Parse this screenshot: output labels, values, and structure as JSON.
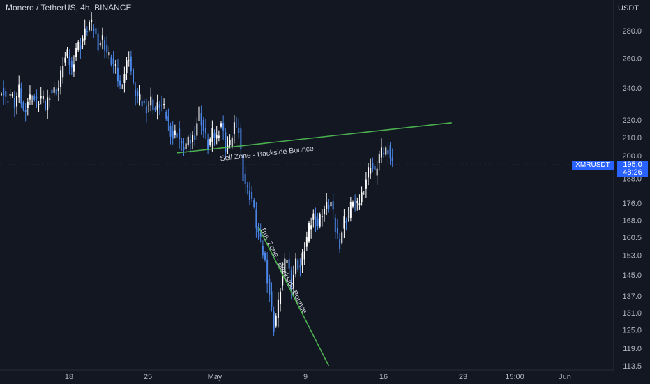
{
  "header": {
    "title": "Monero / TetherUS, 4h, BINANCE",
    "currency": "USDT"
  },
  "last_price": {
    "symbol": "XMRUSDT",
    "price": "195.0",
    "countdown": "48:26"
  },
  "colors": {
    "background": "#131722",
    "candle_up": "#ffffff",
    "candle_down": "#4a86e8",
    "trendline": "#4caf50",
    "price_line": "#5b7cc4",
    "price_tag": "#2962ff"
  },
  "chart_data": {
    "type": "candlestick",
    "y_scale": "log",
    "ylim": [
      113.5,
      300
    ],
    "y_ticks": [
      280.0,
      260.0,
      240.0,
      220.0,
      210.0,
      200.0,
      188.0,
      176.0,
      168.0,
      160.5,
      153.0,
      145.0,
      137.0,
      131.0,
      125.0,
      119.0,
      113.5
    ],
    "x_ticks": [
      "18",
      "25",
      "May",
      "9",
      "16",
      "23",
      "15:00",
      "Jun"
    ],
    "close_series": [
      [
        0,
        240
      ],
      [
        2,
        232
      ],
      [
        4,
        236
      ],
      [
        6,
        230
      ],
      [
        8,
        238
      ],
      [
        10,
        225
      ],
      [
        12,
        232
      ],
      [
        14,
        235
      ],
      [
        16,
        230
      ],
      [
        18,
        234
      ],
      [
        20,
        228
      ],
      [
        22,
        237
      ],
      [
        24,
        238
      ],
      [
        26,
        240
      ],
      [
        28,
        257
      ],
      [
        30,
        262
      ],
      [
        32,
        252
      ],
      [
        34,
        268
      ],
      [
        36,
        270
      ],
      [
        38,
        278
      ],
      [
        40,
        286
      ],
      [
        42,
        282
      ],
      [
        44,
        270
      ],
      [
        46,
        274
      ],
      [
        48,
        264
      ],
      [
        50,
        258
      ],
      [
        52,
        252
      ],
      [
        54,
        240
      ],
      [
        56,
        250
      ],
      [
        58,
        262
      ],
      [
        60,
        240
      ],
      [
        62,
        234
      ],
      [
        64,
        230
      ],
      [
        66,
        228
      ],
      [
        68,
        232
      ],
      [
        70,
        226
      ],
      [
        72,
        230
      ],
      [
        74,
        226
      ],
      [
        76,
        218
      ],
      [
        78,
        210
      ],
      [
        80,
        214
      ],
      [
        82,
        204
      ],
      [
        84,
        206
      ],
      [
        86,
        208
      ],
      [
        88,
        212
      ],
      [
        90,
        226
      ],
      [
        92,
        214
      ],
      [
        94,
        205
      ],
      [
        96,
        212
      ],
      [
        98,
        210
      ],
      [
        100,
        219
      ],
      [
        102,
        205
      ],
      [
        104,
        206
      ],
      [
        106,
        218
      ],
      [
        108,
        214
      ],
      [
        110,
        190
      ],
      [
        112,
        182
      ],
      [
        114,
        178
      ],
      [
        116,
        166
      ],
      [
        118,
        158
      ],
      [
        120,
        150
      ],
      [
        122,
        138
      ],
      [
        124,
        126
      ],
      [
        126,
        134
      ],
      [
        128,
        146
      ],
      [
        130,
        152
      ],
      [
        132,
        141
      ],
      [
        134,
        150
      ],
      [
        136,
        148
      ],
      [
        138,
        156
      ],
      [
        140,
        164
      ],
      [
        142,
        170
      ],
      [
        144,
        166
      ],
      [
        146,
        172
      ],
      [
        148,
        174
      ],
      [
        150,
        176
      ],
      [
        152,
        164
      ],
      [
        154,
        158
      ],
      [
        156,
        168
      ],
      [
        158,
        170
      ],
      [
        160,
        178
      ],
      [
        162,
        174
      ],
      [
        164,
        180
      ],
      [
        166,
        188
      ],
      [
        168,
        196
      ],
      [
        170,
        190
      ],
      [
        172,
        200
      ],
      [
        174,
        202
      ],
      [
        176,
        204
      ],
      [
        178,
        195
      ]
    ],
    "annotations": [
      {
        "text": "Sell Zone - Backside Bounce",
        "type": "trendline",
        "from": [
          80,
          201.5
        ],
        "to": [
          205,
          218.5
        ]
      },
      {
        "text": "Buy Zone - Backside Bounce",
        "type": "trendline",
        "from": [
          117,
          165
        ],
        "to": [
          149,
          113.5
        ]
      }
    ],
    "current_price": 195.0
  }
}
